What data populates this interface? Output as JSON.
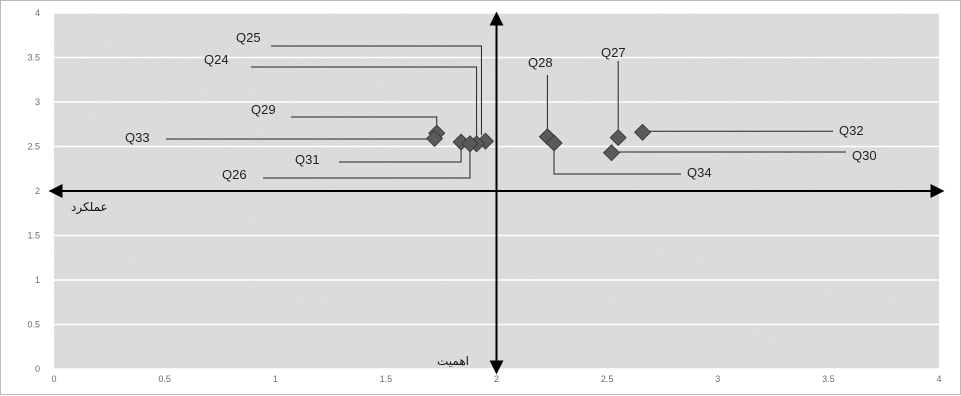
{
  "chart_data": {
    "type": "scatter",
    "xlim": [
      0,
      4
    ],
    "ylim": [
      0,
      4
    ],
    "x_ticks": [
      "0",
      "0.5",
      "1",
      "1.5",
      "2",
      "2.5",
      "3",
      "3.5",
      "4"
    ],
    "y_ticks": [
      "0",
      "0.5",
      "1",
      "1.5",
      "2",
      "2.5",
      "3",
      "3.5",
      "4"
    ],
    "grid": "horizontal",
    "quadrant_axes": {
      "x": 2,
      "y": 2
    },
    "axis_titles": {
      "horizontal": "عملکرد",
      "vertical": "اهمیت"
    },
    "marker_color": "#5a5a5a",
    "points": [
      {
        "label": "Q25",
        "x": 1.95,
        "y": 2.56
      },
      {
        "label": "Q24",
        "x": 1.91,
        "y": 2.53
      },
      {
        "label": "Q29",
        "x": 1.73,
        "y": 2.65
      },
      {
        "label": "Q33",
        "x": 1.72,
        "y": 2.59
      },
      {
        "label": "Q31",
        "x": 1.84,
        "y": 2.55
      },
      {
        "label": "Q26",
        "x": 1.88,
        "y": 2.53
      },
      {
        "label": "Q28",
        "x": 2.23,
        "y": 2.61
      },
      {
        "label": "Q34",
        "x": 2.26,
        "y": 2.54
      },
      {
        "label": "Q27",
        "x": 2.55,
        "y": 2.6
      },
      {
        "label": "Q30",
        "x": 2.52,
        "y": 2.43
      },
      {
        "label": "Q32",
        "x": 2.66,
        "y": 2.66
      }
    ]
  }
}
